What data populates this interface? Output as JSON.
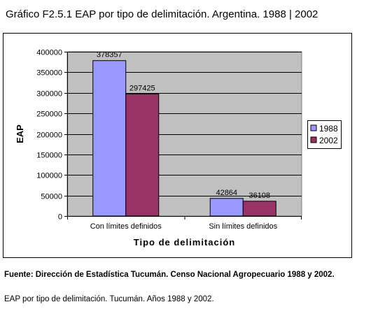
{
  "page": {
    "title": "Gráfico F2.5.1 EAP por tipo de delimitación. Argentina. 1988 | 2002",
    "source": "Fuente: Dirección de Estadística Tucumán. Censo Nacional Agropecuario 1988 y  2002.",
    "note": "EAP por tipo de delimitación. Tucumán. Años 1988 y 2002."
  },
  "chart_data": {
    "type": "bar",
    "title": "",
    "xlabel": "Tipo de delimitación",
    "ylabel": "EAP",
    "categories": [
      "Con límites definidos",
      "Sin límites definidos"
    ],
    "series": [
      {
        "name": "1988",
        "values": [
          378357,
          42864
        ],
        "color": "#9999ff"
      },
      {
        "name": "2002",
        "values": [
          297425,
          36108
        ],
        "color": "#993366"
      }
    ],
    "ylim": [
      0,
      400000
    ],
    "yticks": [
      0,
      50000,
      100000,
      150000,
      200000,
      250000,
      300000,
      350000,
      400000
    ],
    "grid": true,
    "plot_background": "#c0c0c0",
    "legend_position": "right"
  }
}
